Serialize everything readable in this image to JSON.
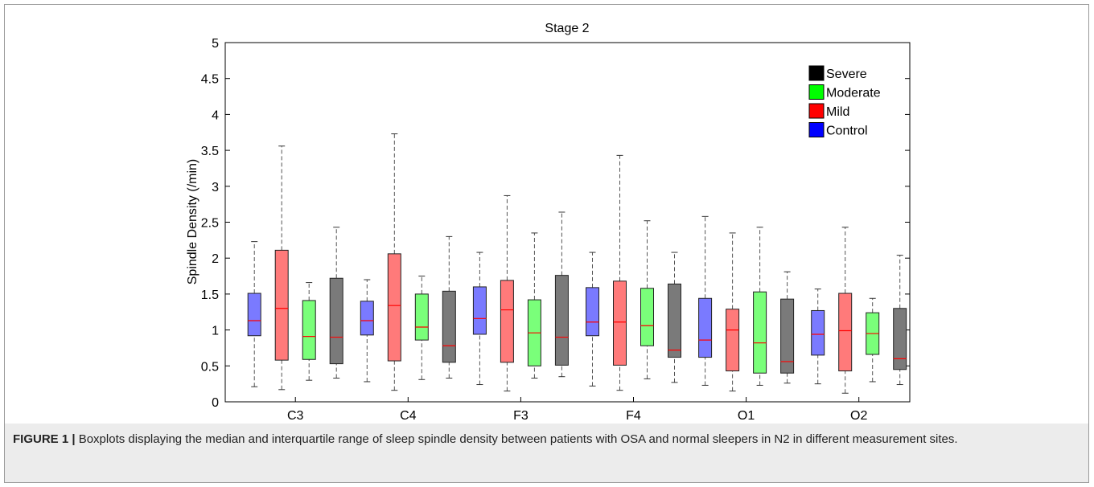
{
  "caption": {
    "label": "FIGURE 1 |",
    "text": " Boxplots displaying the median and interquartile range of sleep spindle density between patients with OSA and normal sleepers in N2 in different measurement sites."
  },
  "chart_data": {
    "type": "boxplot",
    "title": "Stage 2",
    "xlabel": "",
    "ylabel": "Spindle Density (/min)",
    "ylim": [
      0,
      5
    ],
    "yticks": [
      "0",
      "0.5",
      "1",
      "1.5",
      "2",
      "2.5",
      "3",
      "3.5",
      "4",
      "4.5",
      "5"
    ],
    "categories": [
      "C3",
      "C4",
      "F3",
      "F4",
      "O1",
      "O2"
    ],
    "legend": {
      "placement": "top-right",
      "entries": [
        {
          "name": "Severe",
          "color": "#000000"
        },
        {
          "name": "Moderate",
          "color": "#00ff00"
        },
        {
          "name": "Mild",
          "color": "#ff0000"
        },
        {
          "name": "Control",
          "color": "#0000ff"
        }
      ]
    },
    "series": [
      {
        "name": "Control",
        "fill": "#7a7aff",
        "boxes": [
          {
            "min": 0.21,
            "q1": 0.92,
            "median": 1.13,
            "q3": 1.51,
            "max": 2.23
          },
          {
            "min": 0.28,
            "q1": 0.93,
            "median": 1.13,
            "q3": 1.4,
            "max": 1.7
          },
          {
            "min": 0.24,
            "q1": 0.94,
            "median": 1.16,
            "q3": 1.6,
            "max": 2.08
          },
          {
            "min": 0.22,
            "q1": 0.92,
            "median": 1.11,
            "q3": 1.59,
            "max": 2.08
          },
          {
            "min": 0.23,
            "q1": 0.62,
            "median": 0.86,
            "q3": 1.44,
            "max": 2.58
          },
          {
            "min": 0.25,
            "q1": 0.65,
            "median": 0.94,
            "q3": 1.27,
            "max": 1.57
          }
        ]
      },
      {
        "name": "Mild",
        "fill": "#ff7a7a",
        "boxes": [
          {
            "min": 0.17,
            "q1": 0.58,
            "median": 1.3,
            "q3": 2.11,
            "max": 3.56
          },
          {
            "min": 0.16,
            "q1": 0.57,
            "median": 1.34,
            "q3": 2.06,
            "max": 3.73
          },
          {
            "min": 0.15,
            "q1": 0.55,
            "median": 1.28,
            "q3": 1.69,
            "max": 2.87
          },
          {
            "min": 0.16,
            "q1": 0.51,
            "median": 1.11,
            "q3": 1.68,
            "max": 3.43
          },
          {
            "min": 0.15,
            "q1": 0.43,
            "median": 1.0,
            "q3": 1.29,
            "max": 2.35
          },
          {
            "min": 0.12,
            "q1": 0.43,
            "median": 0.99,
            "q3": 1.51,
            "max": 2.43
          }
        ]
      },
      {
        "name": "Moderate",
        "fill": "#7aff7a",
        "boxes": [
          {
            "min": 0.3,
            "q1": 0.59,
            "median": 0.91,
            "q3": 1.41,
            "max": 1.66
          },
          {
            "min": 0.31,
            "q1": 0.86,
            "median": 1.04,
            "q3": 1.5,
            "max": 1.75
          },
          {
            "min": 0.33,
            "q1": 0.5,
            "median": 0.96,
            "q3": 1.42,
            "max": 2.35
          },
          {
            "min": 0.32,
            "q1": 0.78,
            "median": 1.06,
            "q3": 1.58,
            "max": 2.52
          },
          {
            "min": 0.23,
            "q1": 0.4,
            "median": 0.82,
            "q3": 1.53,
            "max": 2.43
          },
          {
            "min": 0.28,
            "q1": 0.66,
            "median": 0.95,
            "q3": 1.24,
            "max": 1.44
          }
        ]
      },
      {
        "name": "Severe",
        "fill": "#7a7a7a",
        "boxes": [
          {
            "min": 0.33,
            "q1": 0.53,
            "median": 0.9,
            "q3": 1.72,
            "max": 2.43
          },
          {
            "min": 0.33,
            "q1": 0.55,
            "median": 0.78,
            "q3": 1.54,
            "max": 2.3
          },
          {
            "min": 0.35,
            "q1": 0.51,
            "median": 0.9,
            "q3": 1.76,
            "max": 2.64
          },
          {
            "min": 0.27,
            "q1": 0.62,
            "median": 0.72,
            "q3": 1.64,
            "max": 2.08
          },
          {
            "min": 0.26,
            "q1": 0.4,
            "median": 0.56,
            "q3": 1.43,
            "max": 1.81
          },
          {
            "min": 0.24,
            "q1": 0.45,
            "median": 0.6,
            "q3": 1.3,
            "max": 2.04
          }
        ]
      }
    ],
    "median_color": "#ff0000",
    "grid": false
  }
}
